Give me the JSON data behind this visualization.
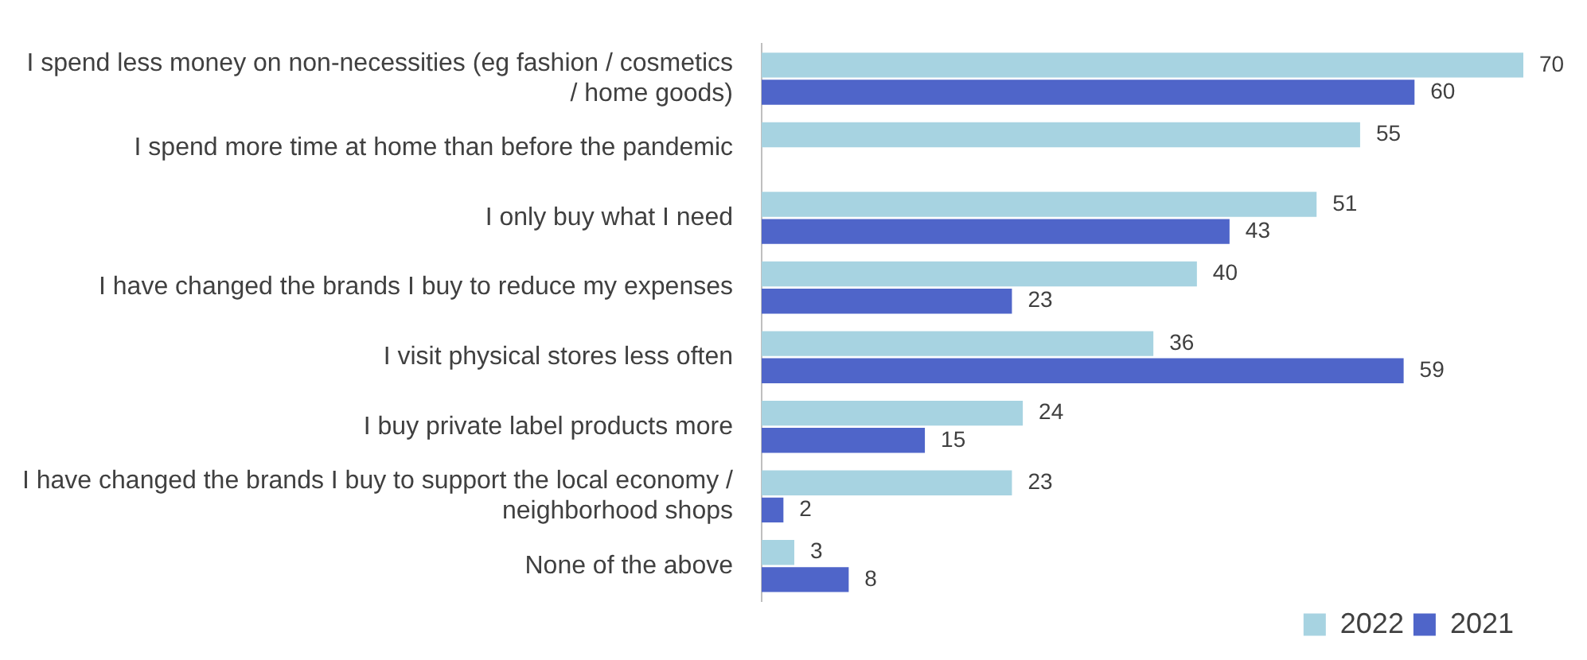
{
  "chart_data": {
    "type": "bar",
    "orientation": "horizontal",
    "data_labels": true,
    "legend": "bottom right",
    "categories": [
      "I spend less money on non-necessities (eg fashion / cosmetics / home goods)",
      "I spend more time at home than before the pandemic",
      "I only buy what I need",
      "I have changed the brands I buy to reduce my expenses",
      "I visit physical stores less often",
      "I buy private label products more",
      "I have changed the brands I buy to support the local economy / neighborhood shops",
      "None of the above"
    ],
    "series": [
      {
        "name": "2022",
        "color": "#a7d3e1",
        "values": [
          70,
          55,
          51,
          40,
          36,
          24,
          23,
          3
        ]
      },
      {
        "name": "2021",
        "color": "#4f65c9",
        "values": [
          60,
          null,
          43,
          23,
          59,
          15,
          2,
          8
        ]
      }
    ]
  }
}
